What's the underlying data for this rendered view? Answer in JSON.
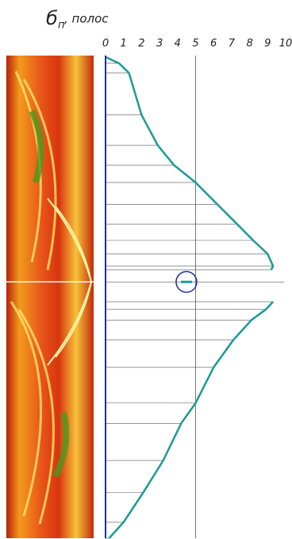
{
  "chart_data": {
    "type": "line",
    "title": {
      "symbol": "б",
      "subscript": "п",
      "text": ", полос"
    },
    "xlim": [
      0,
      10
    ],
    "xticks": [
      0,
      1,
      2,
      3,
      4,
      5,
      6,
      7,
      8,
      9,
      10
    ],
    "ylim": [
      0,
      100
    ],
    "reference_x": 5,
    "axis_color": "#1a2fa0",
    "series": [
      {
        "color": "#1a9a96",
        "x": [
          0,
          0.75,
          1.3,
          2.0,
          2.9,
          3.8,
          5.0,
          6.2,
          7.3,
          8.2,
          9.0,
          9.3,
          9.2,
          null,
          4.8,
          null,
          9.3,
          8.9,
          8.1,
          7.1,
          6.0,
          5.0,
          4.2,
          3.2,
          2.1,
          1.0,
          0.2
        ],
        "y": [
          0.3,
          1.6,
          3.6,
          12.3,
          18.6,
          22.7,
          26.3,
          30.8,
          34.9,
          38.3,
          41.1,
          43.6,
          44.4,
          45.5,
          46.9,
          48.2,
          51.0,
          52.6,
          54.8,
          58.9,
          64.6,
          72.0,
          76.2,
          83.9,
          90.5,
          96.7,
          100
        ]
      }
    ]
  }
}
